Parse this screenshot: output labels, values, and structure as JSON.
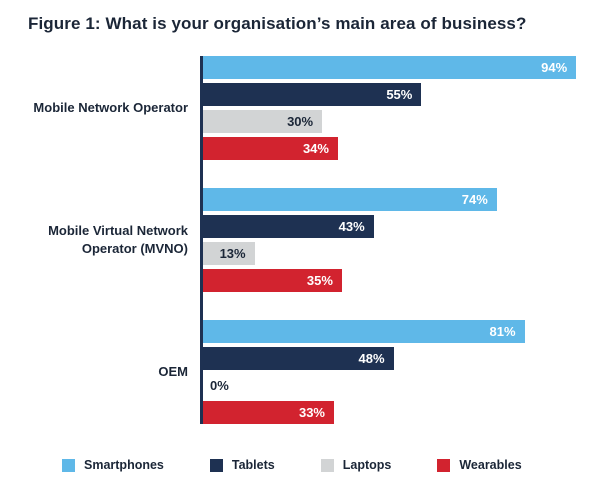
{
  "chart_data": {
    "type": "bar",
    "orientation": "horizontal",
    "title": "Figure 1: What is your organisation’s main area of business?",
    "xlabel": "",
    "ylabel": "",
    "xlim": [
      0,
      100
    ],
    "value_suffix": "%",
    "grid": false,
    "legend_position": "bottom",
    "categories": [
      "Mobile Network Operator",
      "Mobile Virtual Network Operator (MVNO)",
      "OEM"
    ],
    "series": [
      {
        "name": "Smartphones",
        "color": "#5FB8E8",
        "label_color": "#ffffff",
        "values": [
          94,
          74,
          81
        ]
      },
      {
        "name": "Tablets",
        "color": "#1E3152",
        "label_color": "#ffffff",
        "values": [
          55,
          43,
          48
        ]
      },
      {
        "name": "Laptops",
        "color": "#D2D4D5",
        "label_color": "#1b2637",
        "values": [
          30,
          13,
          0
        ]
      },
      {
        "name": "Wearables",
        "color": "#D2232F",
        "label_color": "#ffffff",
        "values": [
          34,
          35,
          33
        ]
      }
    ]
  },
  "colors": {
    "axis": "#1E3152",
    "text": "#1b2637",
    "background": "#ffffff"
  }
}
